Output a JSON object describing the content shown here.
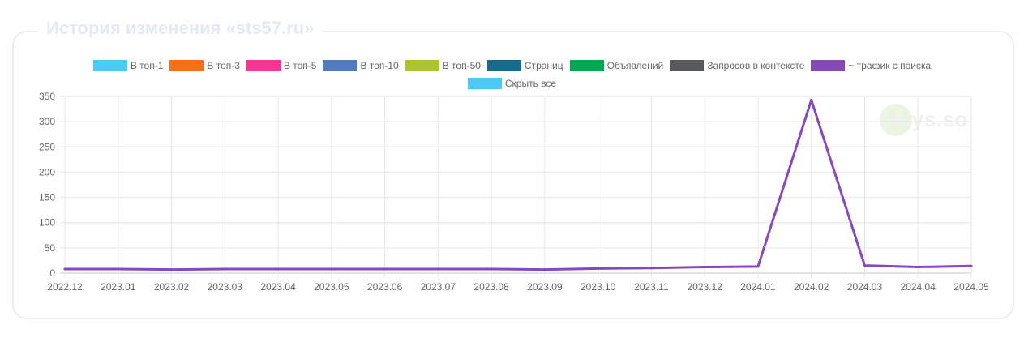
{
  "title": "История изменения «sts57.ru»",
  "hide_all": {
    "label": "Скрыть все",
    "color": "#4dc9f6"
  },
  "watermark": "keys.so",
  "legend": [
    {
      "label": "В топ-1",
      "color": "#4dc9f6",
      "hidden": true
    },
    {
      "label": "В топ-3",
      "color": "#f67019",
      "hidden": true
    },
    {
      "label": "В топ-5",
      "color": "#f53794",
      "hidden": true
    },
    {
      "label": "В топ-10",
      "color": "#537bc4",
      "hidden": true
    },
    {
      "label": "В топ-50",
      "color": "#acc236",
      "hidden": true
    },
    {
      "label": "Страниц",
      "color": "#166a8f",
      "hidden": true
    },
    {
      "label": "Объявлений",
      "color": "#00a950",
      "hidden": true
    },
    {
      "label": "Запросов в контексте",
      "color": "#58595b",
      "hidden": true
    },
    {
      "label": "~ трафик с поиска",
      "color": "#8549ba",
      "hidden": false
    }
  ],
  "chart_data": {
    "type": "line",
    "title": "История изменения «sts57.ru»",
    "xlabel": "",
    "ylabel": "",
    "categories": [
      "2022.12",
      "2023.01",
      "2023.02",
      "2023.03",
      "2023.04",
      "2023.05",
      "2023.06",
      "2023.07",
      "2023.08",
      "2023.09",
      "2023.10",
      "2023.11",
      "2023.12",
      "2024.01",
      "2024.02",
      "2024.03",
      "2024.04",
      "2024.05"
    ],
    "ylim": [
      0,
      350
    ],
    "yticks": [
      "0",
      "50",
      "100",
      "150",
      "200",
      "250",
      "300",
      "350"
    ],
    "grid": true,
    "legend_position": "top",
    "series": [
      {
        "name": "~ трафик с поиска",
        "color": "#8549ba",
        "values": [
          8,
          8,
          7,
          8,
          8,
          8,
          8,
          8,
          8,
          7,
          9,
          10,
          12,
          13,
          343,
          15,
          12,
          14
        ]
      }
    ]
  }
}
